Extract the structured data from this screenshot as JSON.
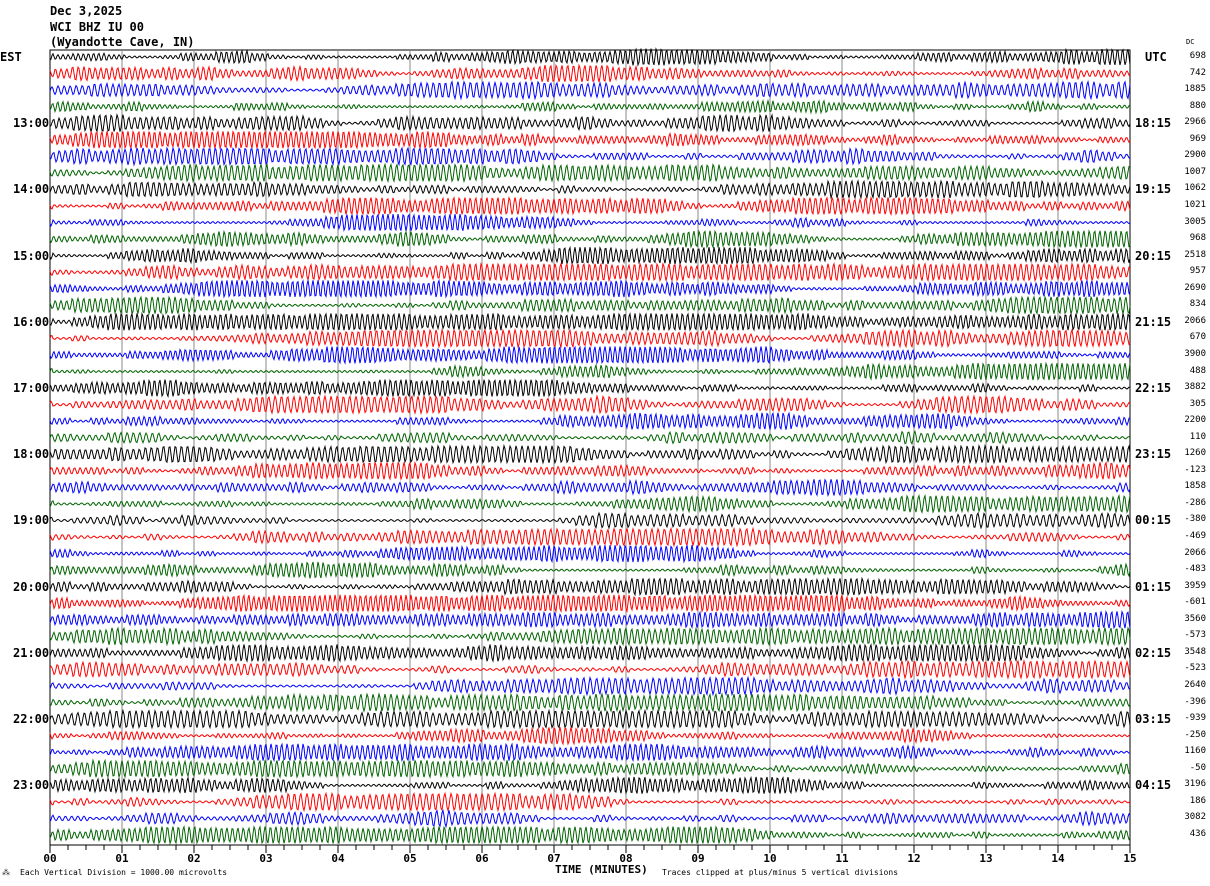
{
  "header": {
    "date": "Dec 3,2025",
    "station": "WCI BHZ IU 00",
    "location": "(Wyandotte Cave, IN)"
  },
  "left_tz": "EST",
  "right_tz": "UTC",
  "dc_label": "DC",
  "footer": {
    "scale": "Each Vertical Division = 1000.00 microvolts",
    "xlabel": "TIME (MINUTES)",
    "clip": "Traces clipped at plus/minus 5 vertical divisions"
  },
  "chart_data": {
    "type": "line",
    "subtype": "helicorder",
    "xlabel": "TIME (MINUTES)",
    "xlim": [
      0,
      15
    ],
    "x_ticks": [
      "00",
      "01",
      "02",
      "03",
      "04",
      "05",
      "06",
      "07",
      "08",
      "09",
      "10",
      "11",
      "12",
      "13",
      "14",
      "15"
    ],
    "grid": true,
    "trace_colors": [
      "#000000",
      "#ff0000",
      "#0000ff",
      "#006400"
    ],
    "traces_per_hour": 4,
    "left_hour_labels": [
      "13:00",
      "14:00",
      "15:00",
      "16:00",
      "17:00",
      "18:00",
      "19:00",
      "20:00",
      "21:00",
      "22:00",
      "23:00"
    ],
    "right_hour_labels": [
      "18:15",
      "19:15",
      "20:15",
      "21:15",
      "22:15",
      "23:15",
      "00:15",
      "01:15",
      "02:15",
      "03:15",
      "04:15"
    ],
    "dc_offsets": [
      "698",
      "742",
      "1885",
      "880",
      "2966",
      "969",
      "2900",
      "1007",
      "1062",
      "1021",
      "3005",
      "968",
      "2518",
      "957",
      "2690",
      "834",
      "2066",
      "670",
      "3900",
      "488",
      "3882",
      "305",
      "2200",
      "110",
      "1260",
      "-123",
      "1858",
      "-286",
      "-380",
      "-469",
      "2066",
      "-483",
      "3959",
      "-601",
      "3560",
      "-573",
      "3548",
      "-523",
      "2640",
      "-396",
      "-939",
      "-250",
      "1160",
      "-50",
      "3196",
      "186",
      "3082",
      "436"
    ]
  }
}
